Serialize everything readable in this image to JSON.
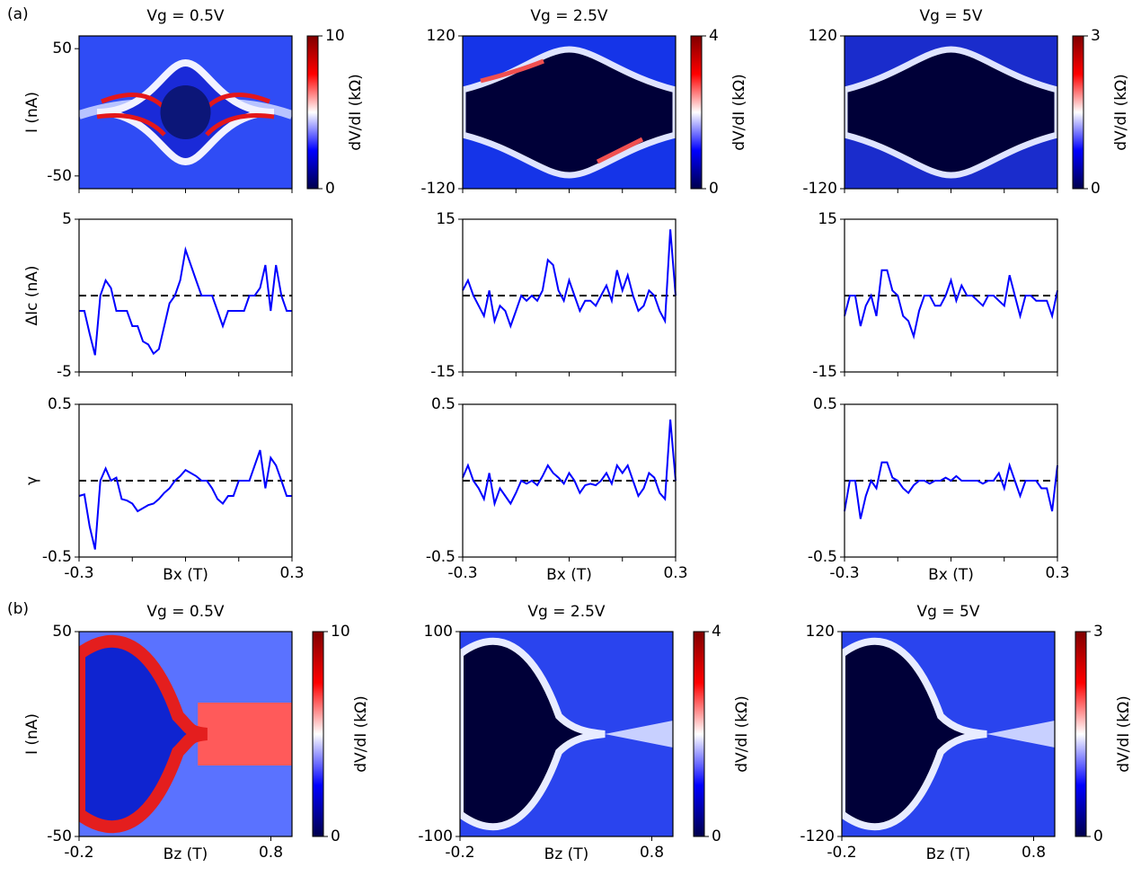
{
  "panel_labels": [
    "(a)",
    "(b)"
  ],
  "chart_data": [
    {
      "type": "heatmap",
      "title": "Vg = 0.5V",
      "ylabel": "I (nA)",
      "xlim": [
        -0.3,
        0.3
      ],
      "ylim": [
        -60,
        60
      ],
      "yticks": [
        -50,
        50
      ],
      "colorbar": {
        "label": "dV/dI (kΩ)",
        "lim": [
          0,
          10
        ],
        "ticks": [
          0,
          10
        ]
      }
    },
    {
      "type": "heatmap",
      "title": "Vg = 2.5V",
      "xlim": [
        -0.3,
        0.3
      ],
      "ylim": [
        -120,
        120
      ],
      "yticks": [
        -120,
        120
      ],
      "colorbar": {
        "label": "dV/dI (kΩ)",
        "lim": [
          0,
          4
        ],
        "ticks": [
          0,
          4
        ]
      }
    },
    {
      "type": "heatmap",
      "title": "Vg = 5V",
      "xlim": [
        -0.3,
        0.3
      ],
      "ylim": [
        -120,
        120
      ],
      "yticks": [
        -120,
        120
      ],
      "colorbar": {
        "label": "dV/dI (kΩ)",
        "lim": [
          0,
          3
        ],
        "ticks": [
          0,
          3
        ]
      }
    },
    {
      "type": "line",
      "ylabel": "ΔIc (nA)",
      "xlim": [
        -0.3,
        0.3
      ],
      "ylim": [
        -5,
        5
      ],
      "yticks": [
        -5,
        5
      ],
      "hline": 0,
      "x": [
        -0.3,
        -0.285,
        -0.27,
        -0.255,
        -0.24,
        -0.225,
        -0.21,
        -0.195,
        -0.18,
        -0.165,
        -0.15,
        -0.135,
        -0.12,
        -0.105,
        -0.09,
        -0.075,
        -0.06,
        -0.045,
        -0.03,
        -0.015,
        0,
        0.015,
        0.03,
        0.045,
        0.06,
        0.075,
        0.09,
        0.105,
        0.12,
        0.135,
        0.15,
        0.165,
        0.18,
        0.195,
        0.21,
        0.225,
        0.24,
        0.255,
        0.27,
        0.285,
        0.3
      ],
      "series": [
        {
          "color": "#0000ff",
          "values": [
            -1,
            -1,
            -2.5,
            -3.9,
            0,
            1,
            0.5,
            -1,
            -1,
            -1,
            -2,
            -2,
            -3,
            -3.2,
            -3.8,
            -3.5,
            -2,
            -0.5,
            0,
            1,
            3,
            2,
            1,
            0,
            0,
            0,
            -1,
            -2,
            -1,
            -1,
            -1,
            -1,
            0,
            0,
            0.5,
            2,
            -1,
            2,
            0,
            -1,
            -1
          ]
        }
      ]
    },
    {
      "type": "line",
      "xlim": [
        -0.3,
        0.3
      ],
      "ylim": [
        -15,
        15
      ],
      "yticks": [
        -15,
        15
      ],
      "hline": 0,
      "x": [
        -0.3,
        -0.285,
        -0.27,
        -0.255,
        -0.24,
        -0.225,
        -0.21,
        -0.195,
        -0.18,
        -0.165,
        -0.15,
        -0.135,
        -0.12,
        -0.105,
        -0.09,
        -0.075,
        -0.06,
        -0.045,
        -0.03,
        -0.015,
        0,
        0.015,
        0.03,
        0.045,
        0.06,
        0.075,
        0.09,
        0.105,
        0.12,
        0.135,
        0.15,
        0.165,
        0.18,
        0.195,
        0.21,
        0.225,
        0.24,
        0.255,
        0.27,
        0.285,
        0.3
      ],
      "series": [
        {
          "color": "#0000ff",
          "values": [
            1,
            3,
            0,
            -2,
            -4,
            1,
            -5,
            -2,
            -3,
            -6,
            -3,
            0,
            -1,
            0,
            -1,
            1,
            7,
            6,
            1,
            -1,
            3,
            0,
            -3,
            -1,
            -1,
            -2,
            0,
            2,
            -1,
            5,
            1,
            4,
            0,
            -3,
            -2,
            1,
            0,
            -3,
            -5,
            13,
            0
          ]
        }
      ]
    },
    {
      "type": "line",
      "xlim": [
        -0.3,
        0.3
      ],
      "ylim": [
        -15,
        15
      ],
      "yticks": [
        -15,
        15
      ],
      "hline": 0,
      "x": [
        -0.3,
        -0.285,
        -0.27,
        -0.255,
        -0.24,
        -0.225,
        -0.21,
        -0.195,
        -0.18,
        -0.165,
        -0.15,
        -0.135,
        -0.12,
        -0.105,
        -0.09,
        -0.075,
        -0.06,
        -0.045,
        -0.03,
        -0.015,
        0,
        0.015,
        0.03,
        0.045,
        0.06,
        0.075,
        0.09,
        0.105,
        0.12,
        0.135,
        0.15,
        0.165,
        0.18,
        0.195,
        0.21,
        0.225,
        0.24,
        0.255,
        0.27,
        0.285,
        0.3
      ],
      "series": [
        {
          "color": "#0000ff",
          "values": [
            -4,
            0,
            0,
            -6,
            -2,
            0,
            -4,
            5,
            5,
            1,
            0,
            -4,
            -5,
            -8,
            -3,
            0,
            0,
            -2,
            -2,
            0,
            3,
            -1,
            2,
            0,
            0,
            -1,
            -2,
            0,
            0,
            -1,
            -2,
            4,
            0,
            -4,
            0,
            0,
            -1,
            -1,
            -1,
            -4,
            1
          ]
        }
      ]
    },
    {
      "type": "line",
      "ylabel": "γ",
      "xlabel": "Bx (T)",
      "xlim": [
        -0.3,
        0.3
      ],
      "ylim": [
        -0.5,
        0.5
      ],
      "yticks": [
        -0.5,
        0.5
      ],
      "xticks": [
        -0.3,
        0.3
      ],
      "hline": 0,
      "x": [
        -0.3,
        -0.285,
        -0.27,
        -0.255,
        -0.24,
        -0.225,
        -0.21,
        -0.195,
        -0.18,
        -0.165,
        -0.15,
        -0.135,
        -0.12,
        -0.105,
        -0.09,
        -0.075,
        -0.06,
        -0.045,
        -0.03,
        -0.015,
        0,
        0.015,
        0.03,
        0.045,
        0.06,
        0.075,
        0.09,
        0.105,
        0.12,
        0.135,
        0.15,
        0.165,
        0.18,
        0.195,
        0.21,
        0.225,
        0.24,
        0.255,
        0.27,
        0.285,
        0.3
      ],
      "series": [
        {
          "color": "#0000ff",
          "values": [
            -0.1,
            -0.09,
            -0.3,
            -0.45,
            0,
            0.08,
            0,
            0.02,
            -0.12,
            -0.13,
            -0.15,
            -0.2,
            -0.18,
            -0.16,
            -0.15,
            -0.12,
            -0.08,
            -0.05,
            0,
            0.03,
            0.07,
            0.05,
            0.03,
            0,
            0,
            -0.05,
            -0.12,
            -0.15,
            -0.1,
            -0.1,
            0,
            0,
            0,
            0.1,
            0.2,
            -0.05,
            0.15,
            0.1,
            0,
            -0.1,
            -0.1
          ]
        }
      ]
    },
    {
      "type": "line",
      "xlabel": "Bx (T)",
      "xlim": [
        -0.3,
        0.3
      ],
      "ylim": [
        -0.5,
        0.5
      ],
      "yticks": [
        -0.5,
        0.5
      ],
      "xticks": [
        -0.3,
        0.3
      ],
      "hline": 0,
      "x": [
        -0.3,
        -0.285,
        -0.27,
        -0.255,
        -0.24,
        -0.225,
        -0.21,
        -0.195,
        -0.18,
        -0.165,
        -0.15,
        -0.135,
        -0.12,
        -0.105,
        -0.09,
        -0.075,
        -0.06,
        -0.045,
        -0.03,
        -0.015,
        0,
        0.015,
        0.03,
        0.045,
        0.06,
        0.075,
        0.09,
        0.105,
        0.12,
        0.135,
        0.15,
        0.165,
        0.18,
        0.195,
        0.21,
        0.225,
        0.24,
        0.255,
        0.27,
        0.285,
        0.3
      ],
      "series": [
        {
          "color": "#0000ff",
          "values": [
            0.02,
            0.1,
            0,
            -0.05,
            -0.12,
            0.05,
            -0.15,
            -0.05,
            -0.1,
            -0.15,
            -0.08,
            0,
            -0.02,
            0,
            -0.03,
            0.03,
            0.1,
            0.05,
            0.02,
            -0.02,
            0.05,
            0,
            -0.08,
            -0.03,
            -0.02,
            -0.03,
            0,
            0.05,
            -0.02,
            0.1,
            0.05,
            0.1,
            0,
            -0.1,
            -0.05,
            0.05,
            0.02,
            -0.08,
            -0.12,
            0.4,
            0
          ]
        }
      ]
    },
    {
      "type": "line",
      "xlabel": "Bx (T)",
      "xlim": [
        -0.3,
        0.3
      ],
      "ylim": [
        -0.5,
        0.5
      ],
      "yticks": [
        -0.5,
        0.5
      ],
      "xticks": [
        -0.3,
        0.3
      ],
      "hline": 0,
      "x": [
        -0.3,
        -0.285,
        -0.27,
        -0.255,
        -0.24,
        -0.225,
        -0.21,
        -0.195,
        -0.18,
        -0.165,
        -0.15,
        -0.135,
        -0.12,
        -0.105,
        -0.09,
        -0.075,
        -0.06,
        -0.045,
        -0.03,
        -0.015,
        0,
        0.015,
        0.03,
        0.045,
        0.06,
        0.075,
        0.09,
        0.105,
        0.12,
        0.135,
        0.15,
        0.165,
        0.18,
        0.195,
        0.21,
        0.225,
        0.24,
        0.255,
        0.27,
        0.285,
        0.3
      ],
      "series": [
        {
          "color": "#0000ff",
          "values": [
            -0.2,
            0,
            0,
            -0.25,
            -0.1,
            0,
            -0.05,
            0.12,
            0.12,
            0.02,
            0,
            -0.05,
            -0.08,
            -0.03,
            0,
            0,
            -0.02,
            0,
            0,
            0.02,
            0,
            0.03,
            0,
            0,
            0,
            0,
            -0.02,
            0,
            0,
            0.05,
            -0.05,
            0.1,
            0,
            -0.1,
            0,
            0,
            0,
            -0.05,
            -0.05,
            -0.2,
            0.1
          ]
        }
      ]
    },
    {
      "type": "heatmap",
      "title": "Vg = 0.5V",
      "ylabel": "I (nA)",
      "xlabel": "Bz (T)",
      "xlim": [
        -0.2,
        0.91
      ],
      "ylim": [
        -50,
        50
      ],
      "yticks": [
        -50,
        50
      ],
      "xticks": [
        -0.2,
        0.8
      ],
      "colorbar": {
        "label": "dV/dI (kΩ)",
        "lim": [
          0,
          10
        ],
        "ticks": [
          0,
          10
        ]
      }
    },
    {
      "type": "heatmap",
      "title": "Vg = 2.5V",
      "xlabel": "Bz (T)",
      "xlim": [
        -0.2,
        0.91
      ],
      "ylim": [
        -100,
        100
      ],
      "yticks": [
        -100,
        100
      ],
      "xticks": [
        -0.2,
        0.8
      ],
      "colorbar": {
        "label": "dV/dI (kΩ)",
        "lim": [
          0,
          4
        ],
        "ticks": [
          0,
          4
        ]
      }
    },
    {
      "type": "heatmap",
      "title": "Vg = 5V",
      "xlabel": "Bz (T)",
      "xlim": [
        -0.2,
        0.91
      ],
      "ylim": [
        -120,
        120
      ],
      "yticks": [
        -120,
        120
      ],
      "xticks": [
        -0.2,
        0.8
      ],
      "colorbar": {
        "label": "dV/dI (kΩ)",
        "lim": [
          0,
          3
        ],
        "ticks": [
          0,
          3
        ]
      }
    }
  ]
}
